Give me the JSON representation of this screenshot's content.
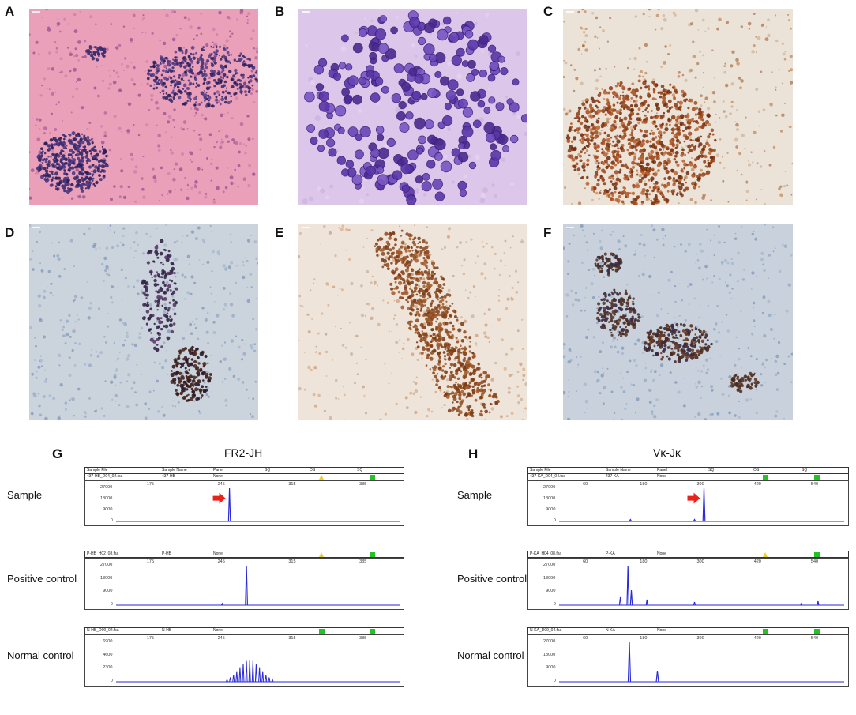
{
  "panels": {
    "A": "A",
    "B": "B",
    "C": "C",
    "D": "D",
    "E": "E",
    "F": "F",
    "G": "G",
    "H": "H"
  },
  "gene_scan_G": {
    "title": "FR2-JH",
    "header_fields": [
      "Sample File",
      "Sample Name",
      "Panel",
      "SQ",
      "OS",
      "SQ"
    ],
    "rows": [
      {
        "label": "Sample",
        "file": "437-HB_D04_02.fsa",
        "name": "437-HB",
        "panel": "None",
        "yticks": [
          "27000",
          "18000",
          "9000",
          "0"
        ],
        "xticks": [
          "175",
          "245",
          "315",
          "385"
        ]
      },
      {
        "label": "Positive control",
        "file": "P-HB_H02_08.fsa",
        "name": "P-HB",
        "panel": "None",
        "yticks": [
          "27000",
          "18000",
          "9000",
          "0"
        ],
        "xticks": [
          "175",
          "245",
          "315",
          "385"
        ]
      },
      {
        "label": "Normal control",
        "file": "N-HB_D09_02.fsa",
        "name": "N-HB",
        "panel": "None",
        "yticks": [
          "6900",
          "4600",
          "2300",
          "0"
        ],
        "xticks": [
          "175",
          "245",
          "315",
          "385"
        ]
      }
    ]
  },
  "gene_scan_H": {
    "title": "Vκ-Jκ",
    "header_fields": [
      "Sample File",
      "Sample Name",
      "Panel",
      "SQ",
      "OS",
      "SQ"
    ],
    "rows": [
      {
        "label": "Sample",
        "file": "437-KA_D04_04.fsa",
        "name": "437-KA",
        "panel": "None",
        "yticks": [
          "27000",
          "18000",
          "9000",
          "0"
        ],
        "xticks": [
          "60",
          "180",
          "300",
          "420",
          "540"
        ]
      },
      {
        "label": "Positive control",
        "file": "P-KA_H04_08.fsa",
        "name": "P-KA",
        "panel": "None",
        "yticks": [
          "27000",
          "18000",
          "9000",
          "0"
        ],
        "xticks": [
          "60",
          "180",
          "300",
          "420",
          "540"
        ]
      },
      {
        "label": "Normal control",
        "file": "N-KA_D09_04.fsa",
        "name": "N-KA",
        "panel": "None",
        "yticks": [
          "27000",
          "18000",
          "9000",
          "0"
        ],
        "xticks": [
          "60",
          "180",
          "300",
          "420",
          "540"
        ]
      }
    ]
  },
  "colors": {
    "trace": "#2a2ad8",
    "arrow": "#e8231a",
    "ok_square": "#22c322",
    "warn_triangle": "#f0d020",
    "he_background": "#e79bb3",
    "ihc_brown": "#7a3a16",
    "hematoxylin_blue": "#c3ccd8"
  }
}
